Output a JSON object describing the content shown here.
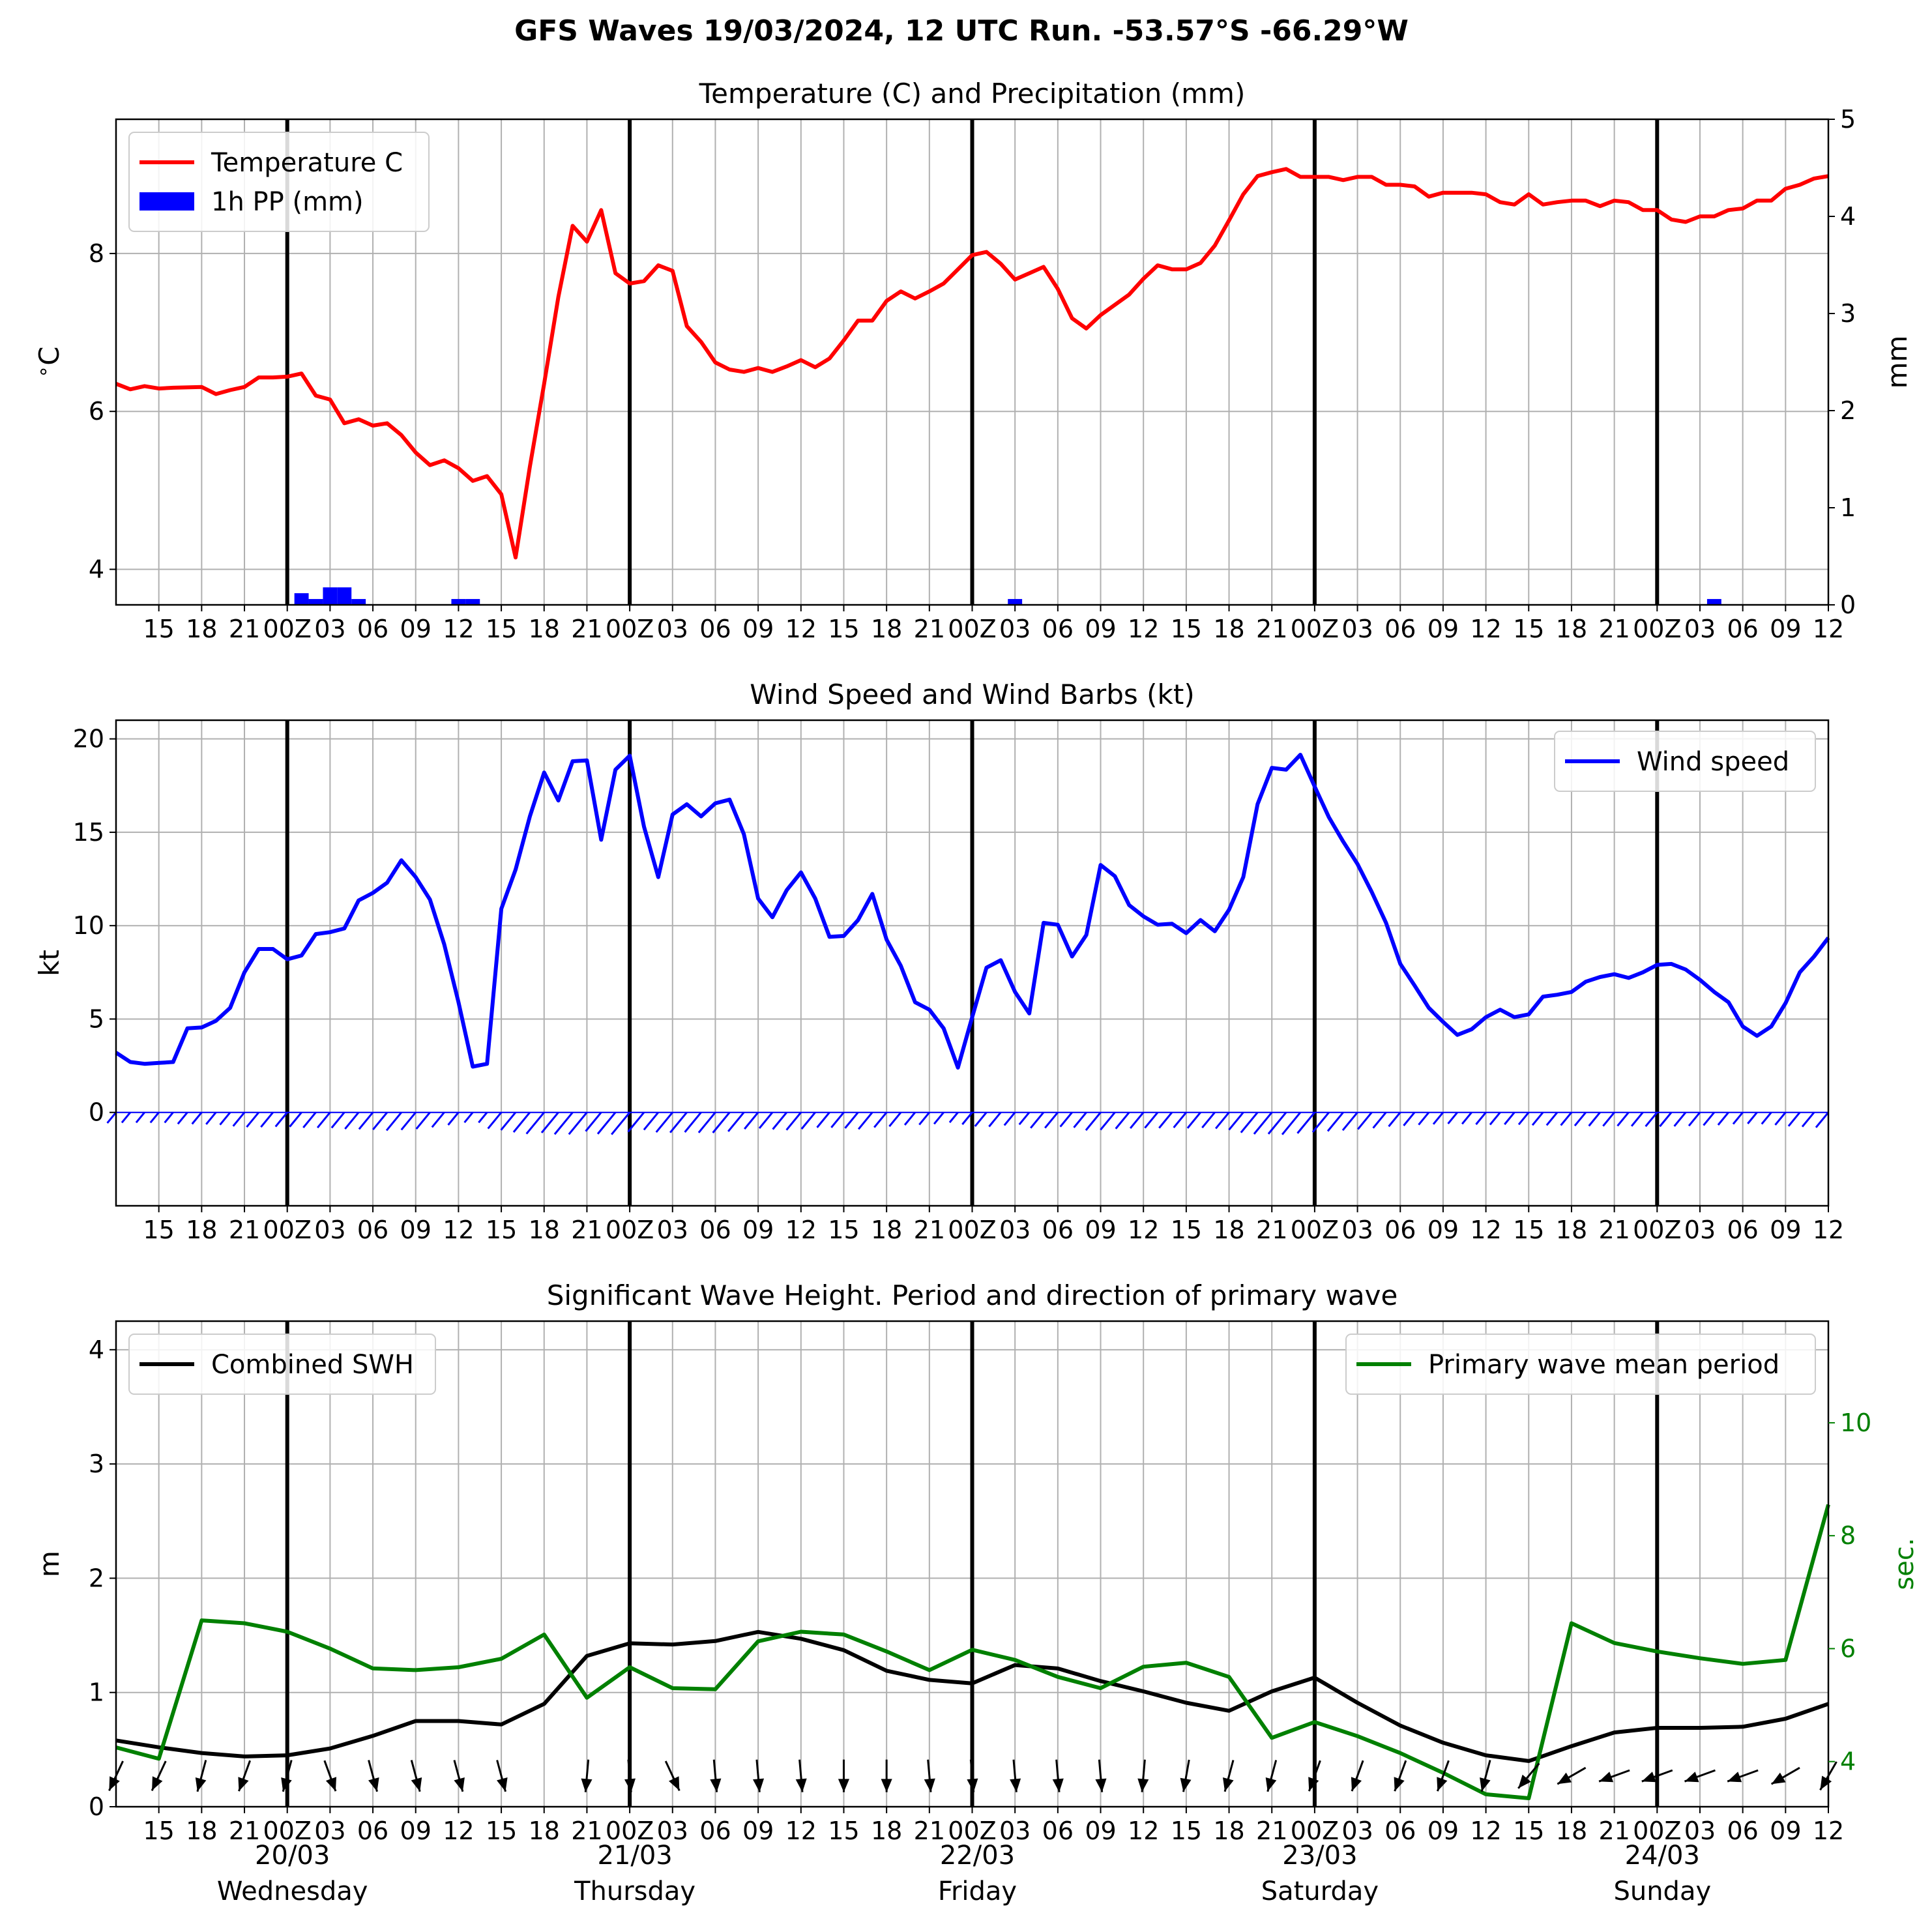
{
  "suptitle": "GFS Waves 19/03/2024, 12 UTC Run. -53.57°S -66.29°W",
  "colors": {
    "temperature": "#ff0000",
    "precip": "#0000ff",
    "wind": "#0000ff",
    "barbs": "#0000ff",
    "swh": "#000000",
    "period": "#008000",
    "arrows": "#000000",
    "grid": "#b0b0b0",
    "day_lines": "#000000"
  },
  "time_axis": {
    "start_hour": 12,
    "end_hour": 132,
    "tick_labels": [
      "15",
      "18",
      "21",
      "00Z",
      "03",
      "06",
      "09",
      "12",
      "15",
      "18",
      "21",
      "00Z",
      "03",
      "06",
      "09",
      "12",
      "15",
      "18",
      "21",
      "00Z",
      "03",
      "06",
      "09",
      "12",
      "15",
      "18",
      "21",
      "00Z",
      "03",
      "06",
      "09",
      "12",
      "15",
      "18",
      "21",
      "00Z",
      "03",
      "06",
      "09",
      "12"
    ],
    "day_labels": [
      {
        "date": "20/03",
        "weekday": "Wednesday"
      },
      {
        "date": "21/03",
        "weekday": "Thursday"
      },
      {
        "date": "22/03",
        "weekday": "Friday"
      },
      {
        "date": "23/03",
        "weekday": "Saturday"
      },
      {
        "date": "24/03",
        "weekday": "Sunday"
      }
    ]
  },
  "chart_data": [
    {
      "type": "line",
      "title": "Temperature (C) and Precipitation (mm)",
      "ylabel": "$^\\circ$C",
      "ylabel_right": "mm",
      "ylim": [
        3.55,
        9.7
      ],
      "ylim_right": [
        0,
        5
      ],
      "yticks": [
        "4",
        "6",
        "8"
      ],
      "yticks_right": [
        "0",
        "1",
        "2",
        "3",
        "4",
        "5"
      ],
      "legend": {
        "placement": "upper-left",
        "entries": [
          "Temperature C",
          "1h PP (mm)"
        ]
      },
      "series": [
        {
          "name": "Temperature C",
          "x": [
            12,
            13,
            14,
            15,
            16,
            18,
            19,
            20,
            21,
            22,
            23,
            24,
            25,
            26,
            27,
            28,
            29,
            30,
            31,
            32,
            33,
            34,
            35,
            36,
            37,
            38,
            39,
            40,
            41,
            42,
            43,
            44,
            45,
            46,
            47,
            48,
            49,
            50,
            51,
            52,
            53,
            54,
            55,
            56,
            57,
            58,
            59,
            60,
            61,
            62,
            63,
            64,
            65,
            66,
            67,
            68,
            69,
            70,
            71,
            72,
            73,
            74,
            75,
            76,
            77,
            78,
            79,
            80,
            81,
            82,
            83,
            84,
            85,
            86,
            87,
            88,
            89,
            90,
            91,
            92,
            93,
            94,
            95,
            96,
            97,
            98,
            99,
            100,
            101,
            102,
            103,
            104,
            105,
            106,
            107,
            108,
            109,
            110,
            111,
            112,
            113,
            114,
            115,
            116,
            117,
            118,
            119,
            120,
            121,
            122,
            123,
            124,
            125,
            126,
            127,
            128,
            129,
            130,
            131,
            132
          ],
          "y": [
            6.35,
            6.28,
            6.32,
            6.29,
            6.3,
            6.31,
            6.22,
            6.27,
            6.31,
            6.43,
            6.43,
            6.44,
            6.48,
            6.2,
            6.15,
            5.85,
            5.9,
            5.82,
            5.85,
            5.7,
            5.48,
            5.32,
            5.38,
            5.28,
            5.12,
            5.18,
            4.95,
            4.15,
            5.3,
            6.35,
            7.45,
            8.35,
            8.15,
            8.55,
            7.75,
            7.62,
            7.65,
            7.85,
            7.78,
            7.08,
            6.88,
            6.62,
            6.53,
            6.5,
            6.55,
            6.5,
            6.57,
            6.65,
            6.56,
            6.67,
            6.9,
            7.15,
            7.15,
            7.4,
            7.52,
            7.43,
            7.52,
            7.62,
            7.8,
            7.98,
            8.02,
            7.87,
            7.67,
            7.75,
            7.83,
            7.55,
            7.18,
            7.05,
            7.22,
            7.35,
            7.48,
            7.68,
            7.85,
            7.8,
            7.8,
            7.88,
            8.1,
            8.42,
            8.75,
            8.98,
            9.03,
            9.07,
            8.97,
            8.97,
            8.97,
            8.93,
            8.97,
            8.97,
            8.87,
            8.87,
            8.85,
            8.72,
            8.77,
            8.77,
            8.77,
            8.75,
            8.65,
            8.62,
            8.75,
            8.62,
            8.65,
            8.67,
            8.67,
            8.6,
            8.67,
            8.65,
            8.55,
            8.55,
            8.43,
            8.4,
            8.47,
            8.47,
            8.55,
            8.57,
            8.67,
            8.67,
            8.82,
            8.87,
            8.95,
            8.98
          ]
        },
        {
          "name": "1h PP (mm)",
          "type": "bar",
          "axis": "right",
          "x": [
            25,
            26,
            27,
            28,
            29,
            36,
            37,
            75,
            124
          ],
          "y": [
            0.12,
            0.06,
            0.18,
            0.18,
            0.06,
            0.06,
            0.06,
            0.06,
            0.06
          ]
        }
      ]
    },
    {
      "type": "line",
      "title": "Wind Speed and Wind Barbs (kt)",
      "ylabel": "kt",
      "ylim": [
        -5,
        21
      ],
      "yticks": [
        "0",
        "5",
        "10",
        "15",
        "20"
      ],
      "legend": {
        "placement": "upper-right",
        "entries": [
          "Wind speed"
        ]
      },
      "series": [
        {
          "name": "Wind speed",
          "x": [
            12,
            13,
            14,
            15,
            16,
            17,
            18,
            19,
            20,
            21,
            22,
            23,
            24,
            25,
            26,
            27,
            28,
            29,
            30,
            31,
            32,
            33,
            34,
            35,
            36,
            37,
            38,
            39,
            40,
            41,
            42,
            43,
            44,
            45,
            46,
            47,
            48,
            49,
            50,
            51,
            52,
            53,
            54,
            55,
            56,
            57,
            58,
            59,
            60,
            61,
            62,
            63,
            64,
            65,
            66,
            67,
            68,
            69,
            70,
            71,
            72,
            73,
            74,
            75,
            76,
            77,
            78,
            79,
            80,
            81,
            82,
            83,
            84,
            85,
            86,
            87,
            88,
            89,
            90,
            91,
            92,
            93,
            94,
            95,
            96,
            97,
            98,
            99,
            100,
            101,
            102,
            103,
            104,
            105,
            106,
            107,
            108,
            109,
            110,
            111,
            112,
            113,
            114,
            115,
            116,
            117,
            118,
            119,
            120,
            121,
            122,
            123,
            124,
            125,
            126,
            127,
            128,
            129,
            130,
            131,
            132
          ],
          "y": [
            3.2,
            2.7,
            2.6,
            2.65,
            2.7,
            4.5,
            4.55,
            4.9,
            5.6,
            7.5,
            8.75,
            8.75,
            8.2,
            8.4,
            9.55,
            9.65,
            9.85,
            11.35,
            11.75,
            12.3,
            13.5,
            12.6,
            11.4,
            9,
            5.9,
            2.45,
            2.6,
            10.9,
            13,
            15.85,
            18.2,
            16.7,
            18.8,
            18.85,
            14.6,
            18.35,
            19.1,
            15.3,
            12.6,
            15.95,
            16.5,
            15.85,
            16.55,
            16.75,
            14.9,
            11.45,
            10.45,
            11.9,
            12.85,
            11.45,
            9.4,
            9.45,
            10.3,
            11.7,
            9.25,
            7.85,
            5.9,
            5.5,
            4.5,
            2.4,
            5.1,
            7.75,
            8.15,
            6.45,
            5.3,
            10.15,
            10.05,
            8.35,
            9.5,
            13.25,
            12.65,
            11.1,
            10.5,
            10.05,
            10.1,
            9.6,
            10.3,
            9.7,
            10.85,
            12.6,
            16.5,
            18.45,
            18.35,
            19.15,
            17.45,
            15.8,
            14.5,
            13.3,
            11.8,
            10.15,
            7.95,
            6.8,
            5.6,
            4.85,
            4.15,
            4.45,
            5.1,
            5.5,
            5.1,
            5.25,
            6.2,
            6.3,
            6.45,
            7,
            7.25,
            7.4,
            7.2,
            7.5,
            7.9,
            7.95,
            7.65,
            7.1,
            6.45,
            5.9,
            4.6,
            4.1,
            4.6,
            5.85,
            7.5,
            8.35,
            9.35
          ]
        }
      ],
      "barbs": {
        "x": [
          12,
          13,
          14,
          15,
          16,
          17,
          18,
          19,
          20,
          21,
          22,
          23,
          24,
          25,
          26,
          27,
          28,
          29,
          30,
          31,
          32,
          33,
          34,
          35,
          36,
          37,
          38,
          39,
          40,
          41,
          42,
          43,
          44,
          45,
          46,
          47,
          48,
          49,
          50,
          51,
          52,
          53,
          54,
          55,
          56,
          57,
          58,
          59,
          60,
          61,
          62,
          63,
          64,
          65,
          66,
          67,
          68,
          69,
          70,
          71,
          72,
          73,
          74,
          75,
          76,
          77,
          78,
          79,
          80,
          81,
          82,
          83,
          84,
          85,
          86,
          87,
          88,
          89,
          90,
          91,
          92,
          93,
          94,
          95,
          96,
          97,
          98,
          99,
          100,
          101,
          102,
          103,
          104,
          105,
          106,
          107,
          108,
          109,
          110,
          111,
          112,
          113,
          114,
          115,
          116,
          117,
          118,
          119,
          120,
          121,
          122,
          123,
          124,
          125,
          126,
          127,
          128,
          129,
          130,
          131,
          132
        ],
        "u": [
          3.2,
          2.7,
          2.6,
          2.65,
          2.7,
          4.5,
          4.55,
          4.9,
          5.6,
          7.5,
          8.75,
          8.75,
          8.2,
          8.4,
          9.55,
          9.65,
          9.85,
          11.35,
          11.75,
          12.3,
          13.5,
          12.6,
          11.4,
          9,
          5.9,
          2.45,
          2.6,
          10.9,
          13,
          15.85,
          18.2,
          16.7,
          18.8,
          18.85,
          14.6,
          18.35,
          19.1,
          15.3,
          12.6,
          15.95,
          16.5,
          15.85,
          16.55,
          16.75,
          14.9,
          11.45,
          10.45,
          11.9,
          12.85,
          11.45,
          9.4,
          9.45,
          10.3,
          11.7,
          9.25,
          7.85,
          5.9,
          5.5,
          4.5,
          2.4,
          5.1,
          7.75,
          8.15,
          6.45,
          5.3,
          10.15,
          10.05,
          8.35,
          9.5,
          13.25,
          12.65,
          11.1,
          10.5,
          10.05,
          10.1,
          9.6,
          10.3,
          9.7,
          10.85,
          12.6,
          16.5,
          18.45,
          18.35,
          19.15,
          17.45,
          15.8,
          14.5,
          13.3,
          11.8,
          10.15,
          7.95,
          6.8,
          5.6,
          4.85,
          4.15,
          4.45,
          5.1,
          5.5,
          5.1,
          5.25,
          6.2,
          6.3,
          6.45,
          7,
          7.25,
          7.4,
          7.2,
          7.5,
          7.9,
          7.95,
          7.65,
          7.1,
          6.45,
          5.9,
          4.6,
          4.1,
          4.6,
          5.85,
          7.5,
          8.35,
          9.35
        ]
      }
    },
    {
      "type": "line",
      "title": "Significant Wave Height. Period and direction of primary wave",
      "ylabel": "m",
      "ylabel_right": "sec.",
      "ylim": [
        0,
        4.25
      ],
      "ylim_right": [
        3.2,
        11.8
      ],
      "yticks": [
        "0",
        "1",
        "2",
        "3",
        "4"
      ],
      "yticks_right": [
        "4",
        "6",
        "8",
        "10"
      ],
      "legend": [
        {
          "placement": "upper-left",
          "entries": [
            "Combined SWH"
          ]
        },
        {
          "placement": "upper-right",
          "entries": [
            "Primary wave mean period"
          ]
        }
      ],
      "series": [
        {
          "name": "Combined SWH",
          "x": [
            12,
            15,
            18,
            21,
            24,
            27,
            30,
            33,
            36,
            39,
            42,
            45,
            48,
            51,
            54,
            57,
            60,
            63,
            66,
            69,
            72,
            75,
            78,
            81,
            84,
            87,
            90,
            93,
            96,
            99,
            102,
            105,
            108,
            111,
            114,
            117,
            120,
            123,
            126,
            129,
            132
          ],
          "y": [
            0.58,
            0.52,
            0.47,
            0.44,
            0.45,
            0.51,
            0.62,
            0.75,
            0.75,
            0.72,
            0.9,
            1.32,
            1.43,
            1.42,
            1.45,
            1.53,
            1.47,
            1.37,
            1.19,
            1.11,
            1.08,
            1.24,
            1.21,
            1.1,
            1.01,
            0.91,
            0.84,
            1.01,
            1.13,
            0.91,
            0.71,
            0.56,
            0.45,
            0.4,
            0.53,
            0.65,
            0.69,
            0.69,
            0.7,
            0.77,
            0.9
          ]
        },
        {
          "name": "Primary wave mean period",
          "axis": "right",
          "x": [
            12,
            15,
            18,
            21,
            24,
            27,
            30,
            33,
            36,
            39,
            42,
            45,
            48,
            51,
            54,
            57,
            60,
            63,
            66,
            69,
            72,
            75,
            78,
            81,
            84,
            87,
            90,
            93,
            96,
            99,
            102,
            105,
            108,
            111,
            114,
            117,
            120,
            123,
            126,
            129,
            132
          ],
          "y": [
            4.25,
            4.05,
            6.5,
            6.45,
            6.3,
            6.0,
            5.65,
            5.62,
            5.67,
            5.82,
            6.25,
            5.13,
            5.67,
            5.3,
            5.28,
            6.13,
            6.3,
            6.25,
            5.95,
            5.62,
            5.98,
            5.8,
            5.5,
            5.3,
            5.68,
            5.75,
            5.5,
            4.42,
            4.7,
            4.45,
            4.15,
            3.8,
            3.42,
            3.35,
            6.45,
            6.1,
            5.95,
            5.83,
            5.73,
            5.8,
            8.55
          ]
        }
      ],
      "arrows": {
        "x": [
          12,
          15,
          18,
          21,
          24,
          27,
          30,
          33,
          36,
          39,
          45,
          48,
          51,
          54,
          57,
          60,
          63,
          66,
          69,
          72,
          75,
          78,
          81,
          84,
          87,
          90,
          93,
          96,
          99,
          102,
          105,
          108,
          111,
          114,
          117,
          120,
          123,
          126,
          129,
          132
        ],
        "direction_deg": [
          335,
          335,
          345,
          340,
          345,
          20,
          15,
          15,
          15,
          15,
          355,
          5,
          25,
          5,
          5,
          5,
          0,
          0,
          5,
          5,
          5,
          5,
          5,
          355,
          350,
          345,
          345,
          340,
          340,
          340,
          340,
          345,
          320,
          300,
          290,
          290,
          290,
          290,
          300,
          330
        ]
      }
    }
  ]
}
